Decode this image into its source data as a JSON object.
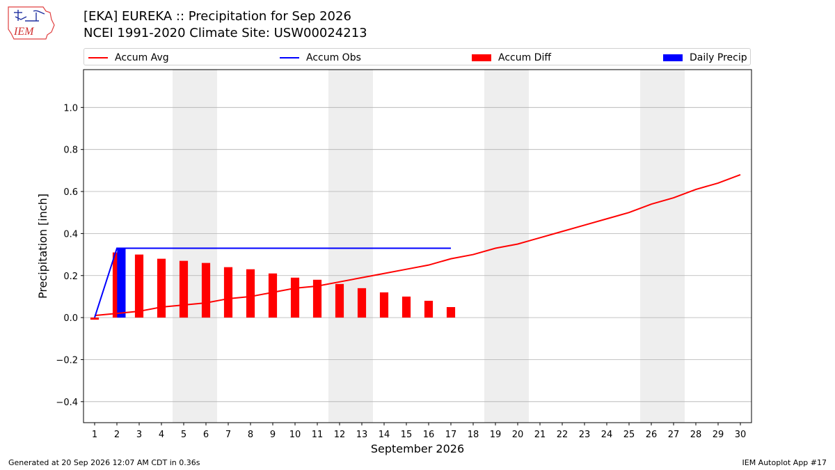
{
  "logo": {
    "text": "IEM"
  },
  "title": {
    "line1": "[EKA] EUREKA :: Precipitation for Sep 2026",
    "line2": "NCEI 1991-2020 Climate Site: USW00024213"
  },
  "legend": {
    "accum_avg": "Accum Avg",
    "accum_obs": "Accum Obs",
    "accum_diff": "Accum Diff",
    "daily_precip": "Daily Precip"
  },
  "colors": {
    "accum_avg": "#ff0000",
    "accum_obs": "#0000ff",
    "accum_diff": "#ff0000",
    "daily_precip": "#0000ff",
    "weekend_shade": "#eeeeee",
    "grid": "#b0b0b0"
  },
  "footer": {
    "left": "Generated at 20 Sep 2026 12:07 AM CDT in 0.36s",
    "right": "IEM Autoplot App #17"
  },
  "chart_data": {
    "type": "bar",
    "xlabel": "September 2026",
    "ylabel": "Precipitation [inch]",
    "xlim": [
      0.5,
      30.5
    ],
    "ylim": [
      -0.5,
      1.18
    ],
    "yticks": [
      -0.4,
      -0.2,
      0.0,
      0.2,
      0.4,
      0.6,
      0.8,
      1.0
    ],
    "ytick_labels": [
      "−0.4",
      "−0.2",
      "0.0",
      "0.2",
      "0.4",
      "0.6",
      "0.8",
      "1.0"
    ],
    "xticks": [
      1,
      2,
      3,
      4,
      5,
      6,
      7,
      8,
      9,
      10,
      11,
      12,
      13,
      14,
      15,
      16,
      17,
      18,
      19,
      20,
      21,
      22,
      23,
      24,
      25,
      26,
      27,
      28,
      29,
      30
    ],
    "grid": "horizontal",
    "legend_position": "top",
    "weekend_shading": [
      [
        5,
        6
      ],
      [
        12,
        13
      ],
      [
        19,
        20
      ],
      [
        26,
        27
      ]
    ],
    "series": [
      {
        "name": "Accum Avg",
        "kind": "line",
        "x": [
          1,
          2,
          3,
          4,
          5,
          6,
          7,
          8,
          9,
          10,
          11,
          12,
          13,
          14,
          15,
          16,
          17,
          18,
          19,
          20,
          21,
          22,
          23,
          24,
          25,
          26,
          27,
          28,
          29,
          30
        ],
        "values": [
          0.01,
          0.02,
          0.03,
          0.05,
          0.06,
          0.07,
          0.09,
          0.1,
          0.12,
          0.14,
          0.15,
          0.17,
          0.19,
          0.21,
          0.23,
          0.25,
          0.28,
          0.3,
          0.33,
          0.35,
          0.38,
          0.41,
          0.44,
          0.47,
          0.5,
          0.54,
          0.57,
          0.61,
          0.64,
          0.68
        ]
      },
      {
        "name": "Accum Obs",
        "kind": "line",
        "x": [
          1,
          2,
          3,
          4,
          5,
          6,
          7,
          8,
          9,
          10,
          11,
          12,
          13,
          14,
          15,
          16,
          17
        ],
        "values": [
          0.0,
          0.33,
          0.33,
          0.33,
          0.33,
          0.33,
          0.33,
          0.33,
          0.33,
          0.33,
          0.33,
          0.33,
          0.33,
          0.33,
          0.33,
          0.33,
          0.33
        ]
      },
      {
        "name": "Accum Diff",
        "kind": "bar",
        "x": [
          1,
          2,
          3,
          4,
          5,
          6,
          7,
          8,
          9,
          10,
          11,
          12,
          13,
          14,
          15,
          16,
          17
        ],
        "values": [
          -0.01,
          0.31,
          0.3,
          0.28,
          0.27,
          0.26,
          0.24,
          0.23,
          0.21,
          0.19,
          0.18,
          0.16,
          0.14,
          0.12,
          0.1,
          0.08,
          0.05
        ]
      },
      {
        "name": "Daily Precip",
        "kind": "bar",
        "x": [
          1,
          2,
          3,
          4,
          5,
          6,
          7,
          8,
          9,
          10,
          11,
          12,
          13,
          14,
          15,
          16,
          17
        ],
        "values": [
          0.0,
          0.33,
          0.0,
          0.0,
          0.0,
          0.0,
          0.0,
          0.0,
          0.0,
          0.0,
          0.0,
          0.0,
          0.0,
          0.0,
          0.0,
          0.0,
          0.0
        ]
      }
    ]
  }
}
